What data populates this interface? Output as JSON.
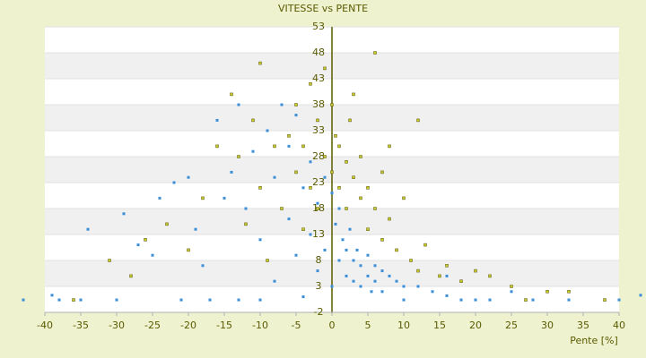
{
  "chart_data": {
    "type": "scatter",
    "title": "VITESSE vs PENTE",
    "xlabel": "Pente [%]",
    "xlim": [
      -40,
      40
    ],
    "xticks": [
      -40,
      -35,
      -30,
      -25,
      -20,
      -15,
      -10,
      -5,
      0,
      5,
      10,
      15,
      20,
      25,
      30,
      35,
      40
    ],
    "ylim": [
      -2,
      53
    ],
    "yticks": [
      -2,
      3,
      8,
      13,
      18,
      23,
      28,
      33,
      38,
      43,
      48,
      53
    ],
    "grid": true,
    "series": [
      {
        "color": "#3a8ed8",
        "x": [
          -43,
          -39,
          -38,
          -35,
          -34,
          -30,
          -29,
          -27,
          -25,
          -24,
          -22,
          -21,
          -20,
          -19,
          -18,
          -17,
          -16,
          -15,
          -14,
          -13,
          -13,
          -12,
          -11,
          -10,
          -10,
          -9,
          -8,
          -8,
          -7,
          -6,
          -6,
          -5,
          -5,
          -4,
          -4,
          -3,
          -3,
          -2,
          -2,
          -1,
          -1,
          0,
          0,
          0.5,
          1,
          1,
          1.5,
          2,
          2,
          2.5,
          3,
          3,
          3.5,
          4,
          4,
          5,
          5,
          5.5,
          6,
          6,
          7,
          7,
          8,
          9,
          10,
          10,
          12,
          14,
          16,
          16,
          18,
          20,
          22,
          25,
          28,
          33,
          40,
          43
        ],
        "y": [
          0.4,
          1.3,
          0.4,
          0.4,
          14,
          0.4,
          17,
          11,
          9,
          20,
          23,
          0.4,
          24,
          14,
          7,
          0.4,
          35,
          20,
          25,
          0.4,
          38,
          18,
          29,
          12,
          0.4,
          33,
          24,
          4,
          38,
          30,
          16,
          36,
          9,
          22,
          1,
          27,
          13,
          19,
          6,
          24,
          10,
          21,
          3,
          15,
          18,
          8,
          12,
          10,
          5,
          14,
          8,
          4,
          10,
          7,
          3,
          9,
          5,
          2,
          7,
          4,
          6,
          2,
          5,
          4,
          3,
          0.4,
          3,
          2,
          1.2,
          5,
          0.4,
          0.4,
          0.4,
          2,
          0.4,
          0.4,
          0.4,
          1.3
        ]
      },
      {
        "color": "#c8c832",
        "x": [
          -36,
          -31,
          -28,
          -26,
          -23,
          -20,
          -18,
          -16,
          -14,
          -13,
          -12,
          -11,
          -10,
          -10,
          -9,
          -8,
          -7,
          -6,
          -5,
          -5,
          -4,
          -4,
          -3,
          -3,
          -2,
          -2,
          -1,
          -1,
          0,
          0,
          0.5,
          1,
          1,
          2,
          2,
          2.5,
          3,
          3,
          4,
          4,
          5,
          5,
          6,
          6,
          7,
          7,
          8,
          8,
          9,
          10,
          11,
          12,
          12,
          13,
          15,
          16,
          18,
          20,
          22,
          25,
          27,
          30,
          33,
          38
        ],
        "y": [
          0.4,
          8,
          5,
          12,
          15,
          10,
          20,
          30,
          40,
          28,
          15,
          35,
          46,
          22,
          8,
          30,
          18,
          32,
          25,
          38,
          14,
          30,
          42,
          22,
          35,
          18,
          28,
          45,
          38,
          25,
          32,
          22,
          30,
          27,
          18,
          35,
          24,
          40,
          20,
          28,
          22,
          14,
          48,
          18,
          25,
          12,
          16,
          30,
          10,
          20,
          8,
          35,
          6,
          11,
          5,
          7,
          4,
          6,
          5,
          3,
          0.4,
          2,
          2,
          0.4
        ]
      }
    ]
  }
}
